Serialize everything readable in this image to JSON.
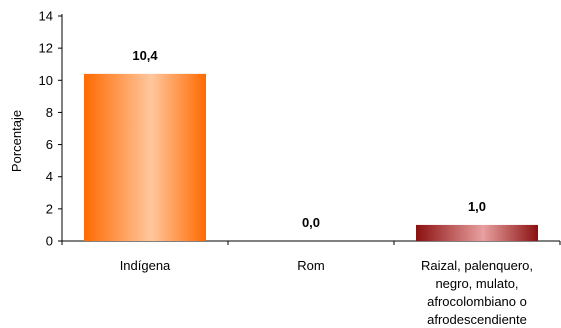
{
  "chart_data": {
    "type": "bar",
    "ylabel": "Porcentaje",
    "ylim": [
      0,
      14
    ],
    "yticks": [
      0,
      2,
      4,
      6,
      8,
      10,
      12,
      14
    ],
    "grid": false,
    "categories": [
      [
        "Indígena"
      ],
      [
        "Rom"
      ],
      [
        "Raizal, palenquero,",
        "negro, mulato,",
        "afrocolombiano o",
        "afrodescendiente"
      ]
    ],
    "values": [
      10.4,
      0.0,
      1.0
    ],
    "data_labels": [
      "10,4",
      "0,0",
      "1,0"
    ],
    "bar_colors": [
      {
        "edge": "#ff6a00",
        "center": "#ffc79e"
      },
      {
        "edge": "#6a0dad",
        "center": "#c9a3ea"
      },
      {
        "edge": "#8b1010",
        "center": "#e8a0a0"
      }
    ]
  }
}
